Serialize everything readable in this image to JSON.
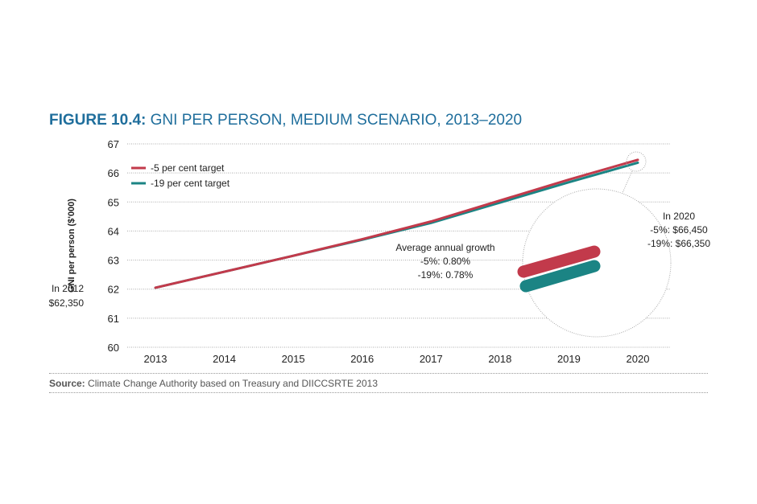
{
  "figure_label": "FIGURE 10.4:",
  "chart_data": {
    "type": "line",
    "title": "GNI PER PERSON, MEDIUM SCENARIO, 2013–2020",
    "xlabel": "",
    "ylabel": "GNI per person ($'000)",
    "x": [
      2013,
      2014,
      2015,
      2016,
      2017,
      2018,
      2019,
      2020
    ],
    "x_tick_labels": [
      "2013",
      "2014",
      "2015",
      "2016",
      "2017",
      "2018",
      "2019",
      "2020"
    ],
    "ylim": [
      60,
      67
    ],
    "y_tick_labels": [
      "60",
      "61",
      "62",
      "63",
      "64",
      "65",
      "66",
      "67"
    ],
    "grid": "horizontal dotted",
    "legend_position": "top-left",
    "series": [
      {
        "name": "-5 per cent target",
        "color": "#c23a4b",
        "values": [
          62.05,
          62.6,
          63.15,
          63.72,
          64.33,
          65.05,
          65.77,
          66.45
        ]
      },
      {
        "name": "-19 per cent target",
        "color": "#1b8484",
        "values": [
          62.05,
          62.6,
          63.15,
          63.7,
          64.28,
          64.98,
          65.68,
          66.35
        ]
      }
    ],
    "annotations": {
      "start": [
        "In 2012",
        "$62,350"
      ],
      "growth": [
        "Average annual growth",
        "-5%: 0.80%",
        "-19%: 0.78%"
      ],
      "end": [
        "In 2020",
        "-5%: $66,450",
        "-19%: $66,350"
      ]
    }
  },
  "source_label": "Source:",
  "source_text": "Climate Change Authority based on Treasury and DIICCSRTE 2013",
  "colors": {
    "title": "#1f6e9c"
  }
}
